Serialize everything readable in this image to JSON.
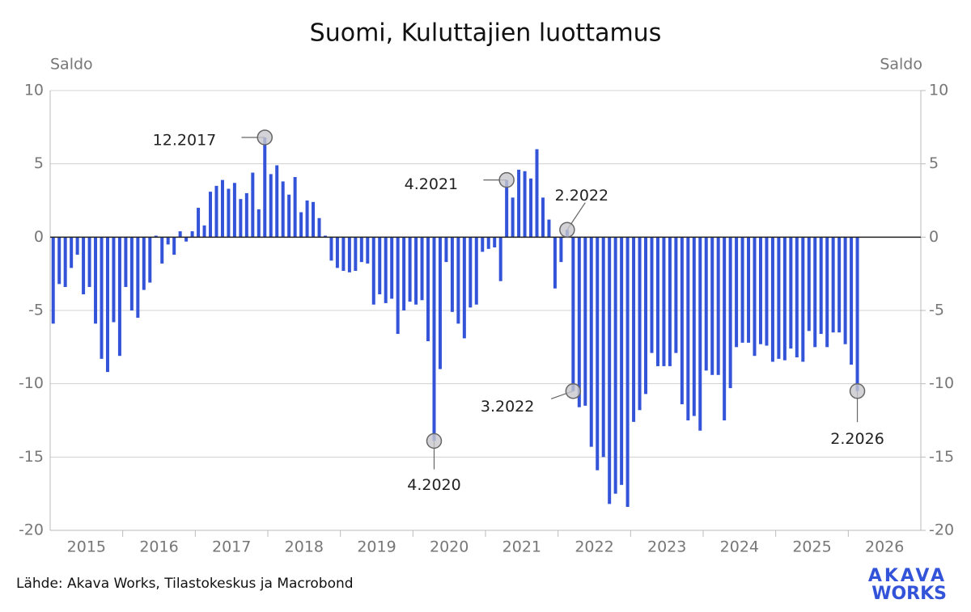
{
  "chart_data": {
    "type": "bar",
    "title": "Suomi, Kuluttajien luottamus",
    "y_label": "Saldo",
    "y2_label": "Saldo",
    "source": "Lähde: Akava Works, Tilastokeskus ja Macrobond",
    "logo": [
      "AKAVA",
      "WORKS"
    ],
    "color": "#3354d8",
    "xlim": [
      "2015-01",
      "2026-12"
    ],
    "xticks": [
      2015,
      2016,
      2017,
      2018,
      2019,
      2020,
      2021,
      2022,
      2023,
      2024,
      2025,
      2026
    ],
    "ylim": [
      -20,
      10
    ],
    "yticks": [
      -20,
      -15,
      -10,
      -5,
      0,
      5,
      10
    ],
    "y2lim": [
      -20,
      10
    ],
    "y2ticks": [
      -20,
      -15,
      -10,
      -5,
      0,
      5,
      10
    ],
    "grid": true,
    "start": "2015-01",
    "values": [
      -5.9,
      -3.2,
      -3.4,
      -2.1,
      -1.2,
      -3.9,
      -3.4,
      -5.9,
      -8.3,
      -9.2,
      -5.8,
      -8.1,
      -3.4,
      -5.0,
      -5.5,
      -3.6,
      -3.1,
      0.1,
      -1.8,
      -0.5,
      -1.2,
      0.4,
      -0.3,
      0.4,
      2.0,
      0.8,
      3.1,
      3.5,
      3.9,
      3.3,
      3.7,
      2.6,
      3.0,
      4.4,
      1.9,
      6.8,
      4.3,
      4.9,
      3.8,
      2.9,
      4.1,
      1.7,
      2.5,
      2.4,
      1.3,
      0.1,
      -1.6,
      -2.1,
      -2.3,
      -2.4,
      -2.3,
      -1.7,
      -1.8,
      -4.6,
      -3.9,
      -4.5,
      -4.2,
      -6.6,
      -5.0,
      -4.4,
      -4.6,
      -4.3,
      -7.1,
      -13.9,
      -9.0,
      -1.7,
      -5.1,
      -5.9,
      -6.9,
      -4.8,
      -4.6,
      -1.0,
      -0.8,
      -0.7,
      -3.0,
      3.9,
      2.7,
      4.6,
      4.5,
      4.0,
      6.0,
      2.7,
      1.2,
      -3.5,
      -1.7,
      0.5,
      -10.5,
      -11.6,
      -11.5,
      -14.3,
      -15.9,
      -15.0,
      -18.2,
      -17.5,
      -16.9,
      -18.4,
      -12.6,
      -11.8,
      -10.7,
      -7.9,
      -8.8,
      -8.8,
      -8.8,
      -7.9,
      -11.4,
      -12.5,
      -12.2,
      -13.2,
      -9.1,
      -9.4,
      -9.4,
      -12.5,
      -10.3,
      -7.5,
      -7.2,
      -7.2,
      -8.1,
      -7.3,
      -7.4,
      -8.5,
      -8.3,
      -8.4,
      -7.6,
      -8.2,
      -8.5,
      -6.4,
      -7.5,
      -6.6,
      -7.5,
      -6.5,
      -6.5,
      -7.3,
      -8.7,
      -10.5
    ],
    "annotations": [
      {
        "label": "12.2017",
        "x": "2017-12"
      },
      {
        "label": "4.2020",
        "x": "2020-04"
      },
      {
        "label": "4.2021",
        "x": "2021-04"
      },
      {
        "label": "2.2022",
        "x": "2022-02"
      },
      {
        "label": "3.2022",
        "x": "2022-03"
      },
      {
        "label": "2.2026",
        "x": "2026-02"
      }
    ]
  }
}
